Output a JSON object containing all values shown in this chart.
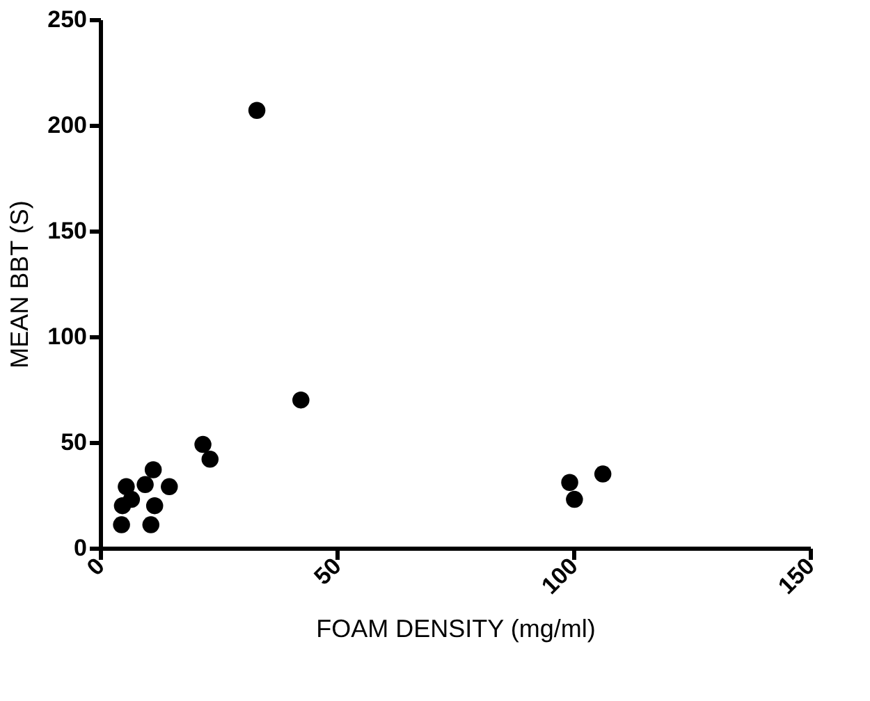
{
  "chart_data": {
    "type": "scatter",
    "xlabel": "FOAM DENSITY (mg/ml)",
    "ylabel": "MEAN BBT (S)",
    "x": [
      4.5,
      4.7,
      5.5,
      6.6,
      9.5,
      10.7,
      11.2,
      11.5,
      14.6,
      21.7,
      23.2,
      33.1,
      42.4,
      99.2,
      100.2,
      106.2
    ],
    "series": [
      {
        "color": "#000000",
        "values": [
          11,
          20,
          29,
          23,
          30,
          11,
          37,
          20,
          29,
          49,
          42,
          207,
          70,
          31,
          23,
          35
        ]
      }
    ],
    "xlim": [
      0,
      150
    ],
    "xticks": [
      0,
      50,
      100,
      150
    ],
    "ylim": [
      0,
      250
    ],
    "yticks": [
      0,
      50,
      100,
      150,
      200,
      250
    ],
    "grid": false,
    "legend": false,
    "marker": "circle"
  }
}
